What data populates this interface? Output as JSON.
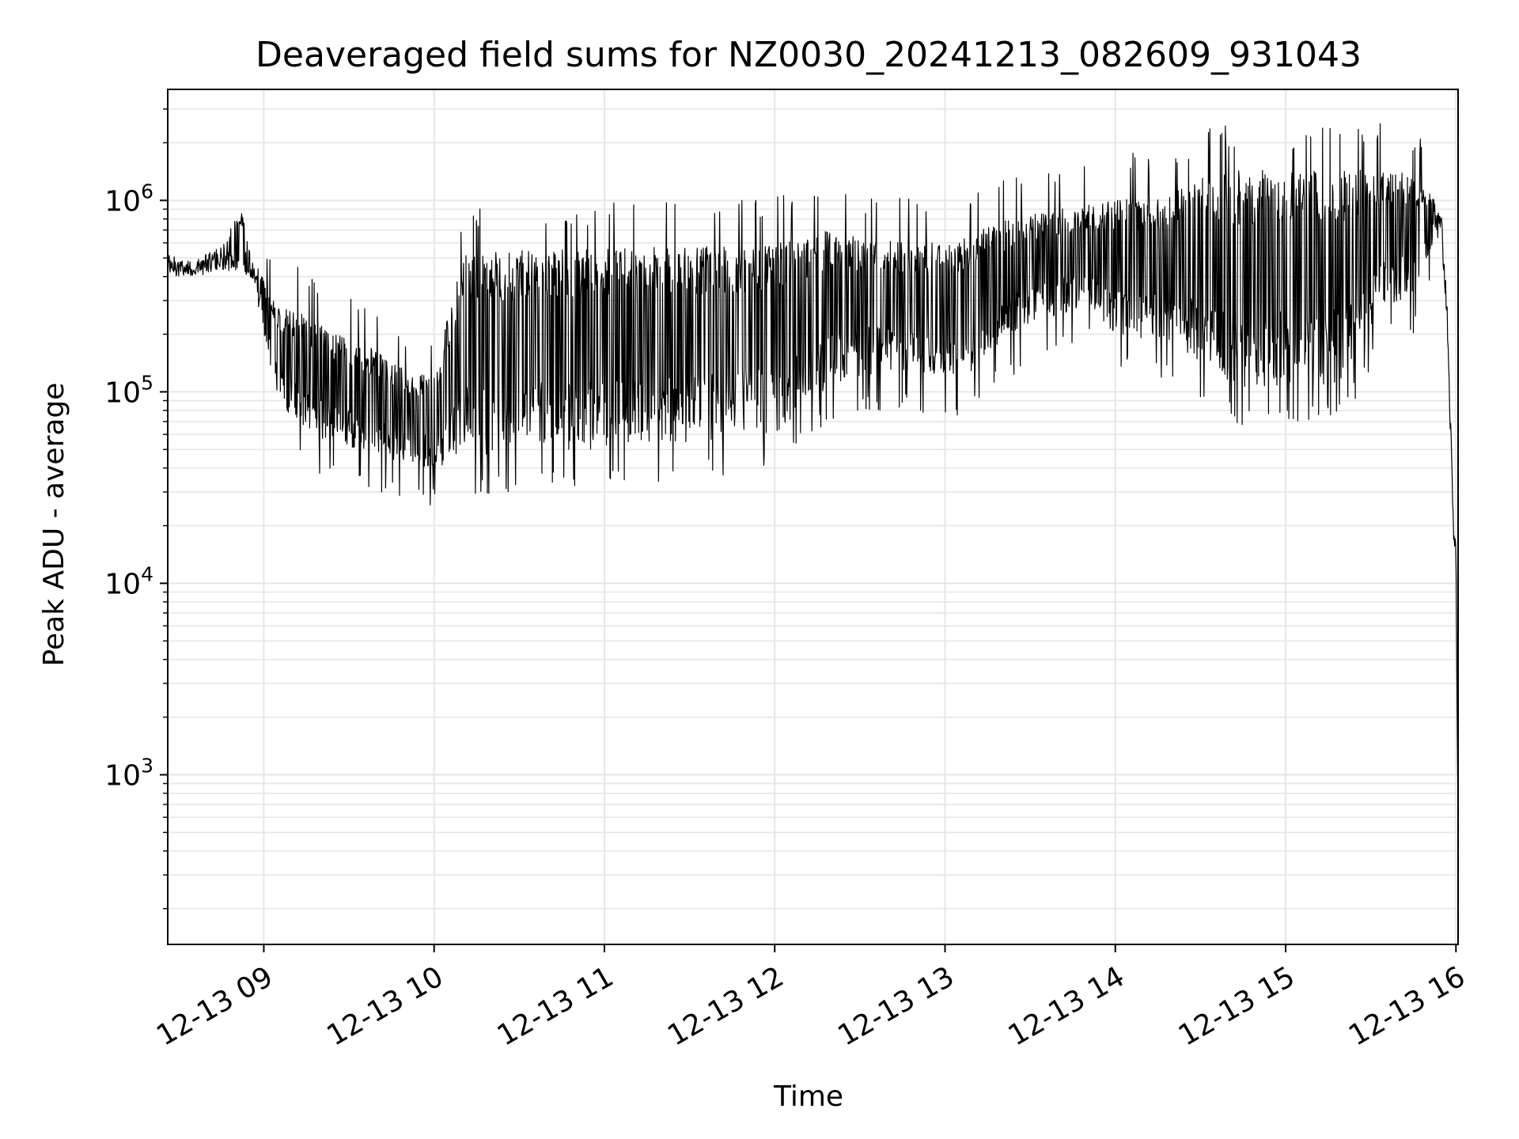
{
  "chart_data": {
    "type": "line",
    "title": "Deaveraged field sums for NZ0030_20241213_082609_931043",
    "xlabel": "Time",
    "ylabel": "Peak ADU - average",
    "yscale": "log",
    "grid": true,
    "grid_minor": true,
    "line_color": "#000000",
    "grid_color": "#e6e6e6",
    "xlim": [
      "2024-12-13 08:26:09",
      "2024-12-13 16:00:45"
    ],
    "ylim": [
      130,
      3800000
    ],
    "x_ticks": [
      "2024-12-13 09:00",
      "2024-12-13 10:00",
      "2024-12-13 11:00",
      "2024-12-13 12:00",
      "2024-12-13 13:00",
      "2024-12-13 14:00",
      "2024-12-13 15:00",
      "2024-12-13 16:00"
    ],
    "x_tick_labels": [
      "12-13 09",
      "12-13 10",
      "12-13 11",
      "12-13 12",
      "12-13 13",
      "12-13 14",
      "12-13 15",
      "12-13 16"
    ],
    "y_ticks": [
      {
        "value": 1000,
        "base": "10",
        "exp": "3"
      },
      {
        "value": 10000,
        "base": "10",
        "exp": "4"
      },
      {
        "value": 100000,
        "base": "10",
        "exp": "5"
      },
      {
        "value": 1000000,
        "base": "10",
        "exp": "6"
      }
    ],
    "series": [
      {
        "x": [
          "2024-12-13 08:26",
          "2024-12-13 08:35",
          "2024-12-13 08:45",
          "2024-12-13 08:52",
          "2024-12-13 08:56",
          "2024-12-13 09:05",
          "2024-12-13 09:15",
          "2024-12-13 09:25",
          "2024-12-13 09:35",
          "2024-12-13 09:50",
          "2024-12-13 10:00",
          "2024-12-13 10:10",
          "2024-12-13 10:30",
          "2024-12-13 11:00",
          "2024-12-13 11:30",
          "2024-12-13 12:00",
          "2024-12-13 12:20",
          "2024-12-13 12:30",
          "2024-12-13 12:45",
          "2024-12-13 13:00",
          "2024-12-13 13:10",
          "2024-12-13 13:30",
          "2024-12-13 13:50",
          "2024-12-13 14:00",
          "2024-12-13 14:20",
          "2024-12-13 14:35",
          "2024-12-13 14:50",
          "2024-12-13 15:00",
          "2024-12-13 15:20",
          "2024-12-13 15:35",
          "2024-12-13 15:45",
          "2024-12-13 15:52",
          "2024-12-13 15:55",
          "2024-12-13 15:57",
          "2024-12-13 15:59",
          "2024-12-13 16:00",
          "2024-12-13 16:00:45"
        ],
        "high": [
          520000,
          480000,
          580000,
          900000,
          500000,
          280000,
          250000,
          200000,
          180000,
          130000,
          120000,
          520000,
          550000,
          560000,
          580000,
          600000,
          700000,
          650000,
          600000,
          600000,
          700000,
          850000,
          950000,
          1000000,
          1100000,
          1400000,
          1450000,
          1400000,
          1450000,
          1450000,
          1350000,
          1050000,
          850000,
          300000,
          25000,
          17000,
          500
        ],
        "low": [
          400000,
          400000,
          420000,
          430000,
          380000,
          90000,
          60000,
          55000,
          48000,
          42000,
          40000,
          45000,
          48000,
          50000,
          55000,
          60000,
          110000,
          120000,
          130000,
          110000,
          130000,
          230000,
          280000,
          200000,
          180000,
          120000,
          100000,
          110000,
          110000,
          280000,
          320000,
          600000,
          550000,
          200000,
          17000,
          14000,
          500
        ]
      }
    ]
  }
}
